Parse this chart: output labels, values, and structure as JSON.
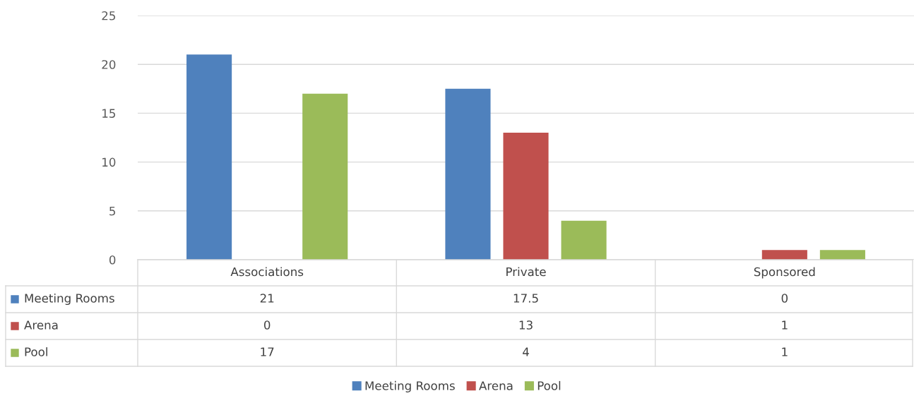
{
  "chart_data": {
    "type": "bar",
    "categories": [
      "Associations",
      "Private",
      "Sponsored"
    ],
    "series": [
      {
        "name": "Meeting Rooms",
        "color": "#4f81bd",
        "values": [
          21,
          17.5,
          0
        ]
      },
      {
        "name": "Arena",
        "color": "#c0504d",
        "values": [
          0,
          13,
          1
        ]
      },
      {
        "name": "Pool",
        "color": "#9bbb59",
        "values": [
          17,
          4,
          1
        ]
      }
    ],
    "ylim": [
      0,
      25
    ],
    "yticks": [
      0,
      5,
      10,
      15,
      20,
      25
    ],
    "grid": "y",
    "data_labels": true,
    "legend": "bottom"
  }
}
